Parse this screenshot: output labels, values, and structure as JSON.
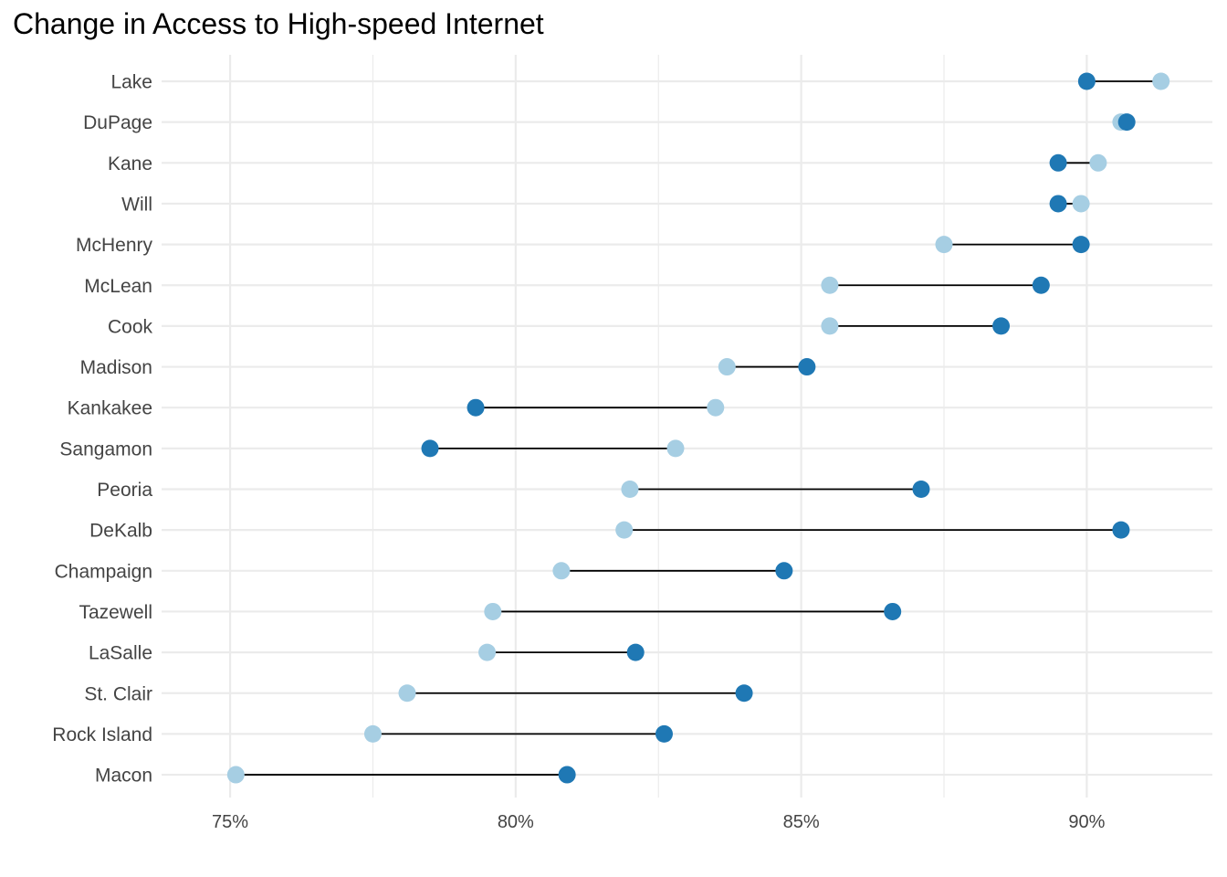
{
  "chart_data": {
    "type": "dumbbell",
    "title": "Change in Access to High-speed Internet",
    "xlabel": "",
    "ylabel": "",
    "xlim": [
      73.8,
      92.2
    ],
    "x_ticks": [
      75,
      80,
      85,
      90
    ],
    "x_tick_labels": [
      "75%",
      "80%",
      "85%",
      "90%"
    ],
    "grid": true,
    "legend": "none",
    "categories": [
      "Lake",
      "DuPage",
      "Kane",
      "Will",
      "McHenry",
      "McLean",
      "Cook",
      "Madison",
      "Kankakee",
      "Sangamon",
      "Peoria",
      "DeKalb",
      "Champaign",
      "Tazewell",
      "LaSalle",
      "St. Clair",
      "Rock Island",
      "Macon"
    ],
    "series": [
      {
        "color": "#a6cee3",
        "values": [
          91.3,
          90.6,
          90.2,
          89.9,
          87.5,
          85.5,
          85.5,
          83.7,
          83.5,
          82.8,
          82.0,
          81.9,
          80.8,
          79.6,
          79.5,
          78.1,
          77.5,
          75.1
        ]
      },
      {
        "color": "#1f78b4",
        "values": [
          90.0,
          90.7,
          89.5,
          89.5,
          89.9,
          89.2,
          88.5,
          85.1,
          79.3,
          78.5,
          87.1,
          90.6,
          84.7,
          86.6,
          82.1,
          84.0,
          82.6,
          80.9
        ]
      }
    ],
    "connector_color": "#000000",
    "grid_color": "#ebebeb"
  }
}
